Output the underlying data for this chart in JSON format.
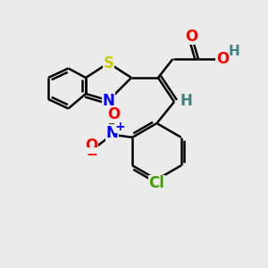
{
  "bg_color": "#ebebeb",
  "bond_color": "#000000",
  "bond_width": 1.8,
  "atoms": {
    "S": {
      "color": "#cccc00",
      "fontsize": 12,
      "fontweight": "bold"
    },
    "N": {
      "color": "#0000ff",
      "fontsize": 12,
      "fontweight": "bold"
    },
    "O_red": {
      "color": "#ff0000",
      "fontsize": 12,
      "fontweight": "bold"
    },
    "H": {
      "color": "#408080",
      "fontsize": 12,
      "fontweight": "bold"
    },
    "Cl": {
      "color": "#40a000",
      "fontsize": 12,
      "fontweight": "bold"
    },
    "C": {
      "color": "#000000",
      "fontsize": 12,
      "fontweight": "bold"
    }
  },
  "xlim": [
    0,
    10
  ],
  "ylim": [
    0,
    10
  ]
}
